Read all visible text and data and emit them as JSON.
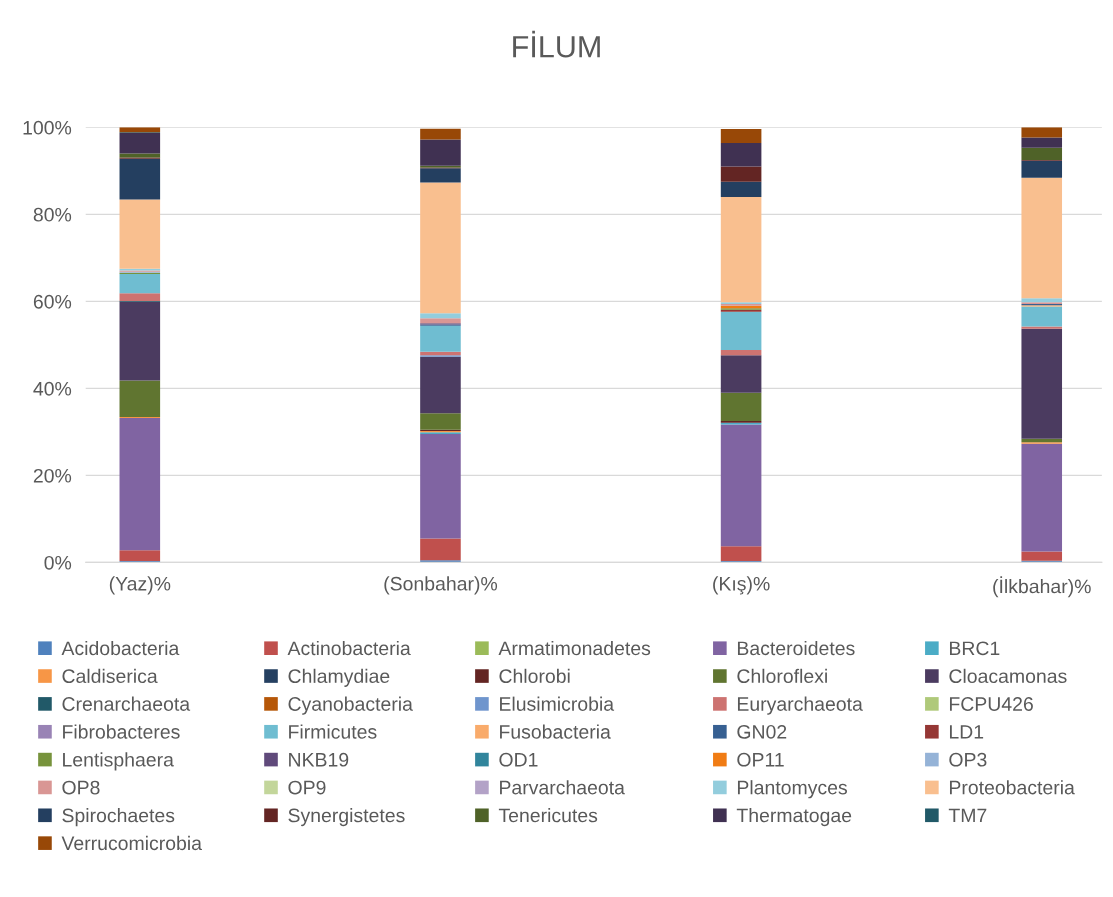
{
  "chart_data": {
    "type": "bar",
    "stacked": true,
    "title": "FİLUM",
    "categories": [
      "(Yaz)%",
      "(Sonbahar)%",
      "(Kış)%",
      "(İlkbahar)%"
    ],
    "ylim": [
      0,
      100
    ],
    "yticks": [
      {
        "value": 0,
        "label": "0%"
      },
      {
        "value": 20,
        "label": "20%"
      },
      {
        "value": 40,
        "label": "40%"
      },
      {
        "value": 60,
        "label": "60%"
      },
      {
        "value": 80,
        "label": "80%"
      },
      {
        "value": 100,
        "label": "100%"
      }
    ],
    "grid": "y",
    "legend": "bottom",
    "series": [
      {
        "name": "Acidobacteria",
        "color": "#4f81bd",
        "values": [
          0.3,
          0.5,
          0.3,
          0.4
        ]
      },
      {
        "name": "Actinobacteria",
        "color": "#c0504d",
        "values": [
          2.5,
          5.0,
          3.4,
          2.1
        ]
      },
      {
        "name": "Armatimonadetes",
        "color": "#9bbb59",
        "values": [
          null,
          null,
          null,
          null
        ]
      },
      {
        "name": "Bacteroidetes",
        "color": "#8064a2",
        "values": [
          30.4,
          24.0,
          28.0,
          24.8
        ]
      },
      {
        "name": "BRC1",
        "color": "#4bacc6",
        "values": [
          null,
          0.4,
          0.4,
          null
        ]
      },
      {
        "name": "Caldiserica",
        "color": "#f79646",
        "values": [
          0.2,
          0.3,
          null,
          0.3
        ]
      },
      {
        "name": "Chlamydiae",
        "color": "#254061",
        "values": [
          null,
          null,
          null,
          null
        ]
      },
      {
        "name": "Chlorobi",
        "color": "#632523",
        "values": [
          null,
          0.3,
          0.4,
          null
        ]
      },
      {
        "name": "Chloroflexi",
        "color": "#607530",
        "values": [
          8.4,
          3.8,
          6.5,
          0.8
        ]
      },
      {
        "name": "Cloacamonas",
        "color": "#4b3b60",
        "values": [
          18.1,
          13.0,
          8.6,
          25.3
        ]
      },
      {
        "name": "Crenarchaeota",
        "color": "#215968",
        "values": [
          0.2,
          null,
          null,
          null
        ]
      },
      {
        "name": "Cyanobacteria",
        "color": "#b65708",
        "values": [
          null,
          null,
          null,
          null
        ]
      },
      {
        "name": "Elusimicrobia",
        "color": "#6f95cd",
        "values": [
          null,
          0.3,
          null,
          null
        ]
      },
      {
        "name": "Euryarchaeota",
        "color": "#cd7371",
        "values": [
          1.8,
          0.8,
          1.2,
          0.5
        ]
      },
      {
        "name": "FCPU426",
        "color": "#afc97a",
        "values": [
          null,
          null,
          null,
          null
        ]
      },
      {
        "name": "Fibrobacteres",
        "color": "#9983b5",
        "values": [
          null,
          null,
          null,
          null
        ]
      },
      {
        "name": "Firmicutes",
        "color": "#6fbdd1",
        "values": [
          4.4,
          6.0,
          8.8,
          4.6
        ]
      },
      {
        "name": "Fusobacteria",
        "color": "#f9ab6b",
        "values": [
          null,
          null,
          null,
          0.3
        ]
      },
      {
        "name": "GN02",
        "color": "#376092",
        "values": [
          null,
          0.3,
          null,
          0.3
        ]
      },
      {
        "name": "LD1",
        "color": "#953735",
        "values": [
          null,
          null,
          0.5,
          null
        ]
      },
      {
        "name": "Lentisphaera",
        "color": "#77933c",
        "values": [
          0.3,
          null,
          0.3,
          null
        ]
      },
      {
        "name": "NKB19",
        "color": "#604a7b",
        "values": [
          null,
          0.3,
          null,
          null
        ]
      },
      {
        "name": "OD1",
        "color": "#31859c",
        "values": [
          null,
          null,
          null,
          null
        ]
      },
      {
        "name": "OP11",
        "color": "#f07c14",
        "values": [
          null,
          null,
          0.6,
          null
        ]
      },
      {
        "name": "OP3",
        "color": "#95b3d7",
        "values": [
          0.2,
          null,
          null,
          null
        ]
      },
      {
        "name": "OP8",
        "color": "#d99694",
        "values": [
          0.3,
          1.1,
          0.4,
          0.4
        ]
      },
      {
        "name": "OP9",
        "color": "#c3d69b",
        "values": [
          null,
          null,
          null,
          null
        ]
      },
      {
        "name": "Parvarchaeota",
        "color": "#b3a2c7",
        "values": [
          null,
          null,
          null,
          null
        ]
      },
      {
        "name": "Plantomyces",
        "color": "#93cddd",
        "values": [
          0.4,
          1.2,
          0.4,
          0.9
        ]
      },
      {
        "name": "Proteobacteria",
        "color": "#f9bf8f",
        "values": [
          15.9,
          30.0,
          24.2,
          27.7
        ]
      },
      {
        "name": "Spirochaetes",
        "color": "#243f60",
        "values": [
          9.4,
          3.3,
          3.5,
          3.9
        ]
      },
      {
        "name": "Synergistetes",
        "color": "#632523",
        "values": [
          0.3,
          0.2,
          3.5,
          0.2
        ]
      },
      {
        "name": "Tenericutes",
        "color": "#4f6228",
        "values": [
          0.9,
          0.4,
          null,
          2.8
        ]
      },
      {
        "name": "Thermatogae",
        "color": "#403152",
        "values": [
          4.7,
          6.0,
          5.4,
          2.4
        ]
      },
      {
        "name": "TM7",
        "color": "#215968",
        "values": [
          0.2,
          null,
          null,
          null
        ]
      },
      {
        "name": "Verrucomicrobia",
        "color": "#984807",
        "values": [
          1.1,
          2.5,
          3.2,
          2.3
        ]
      }
    ]
  }
}
